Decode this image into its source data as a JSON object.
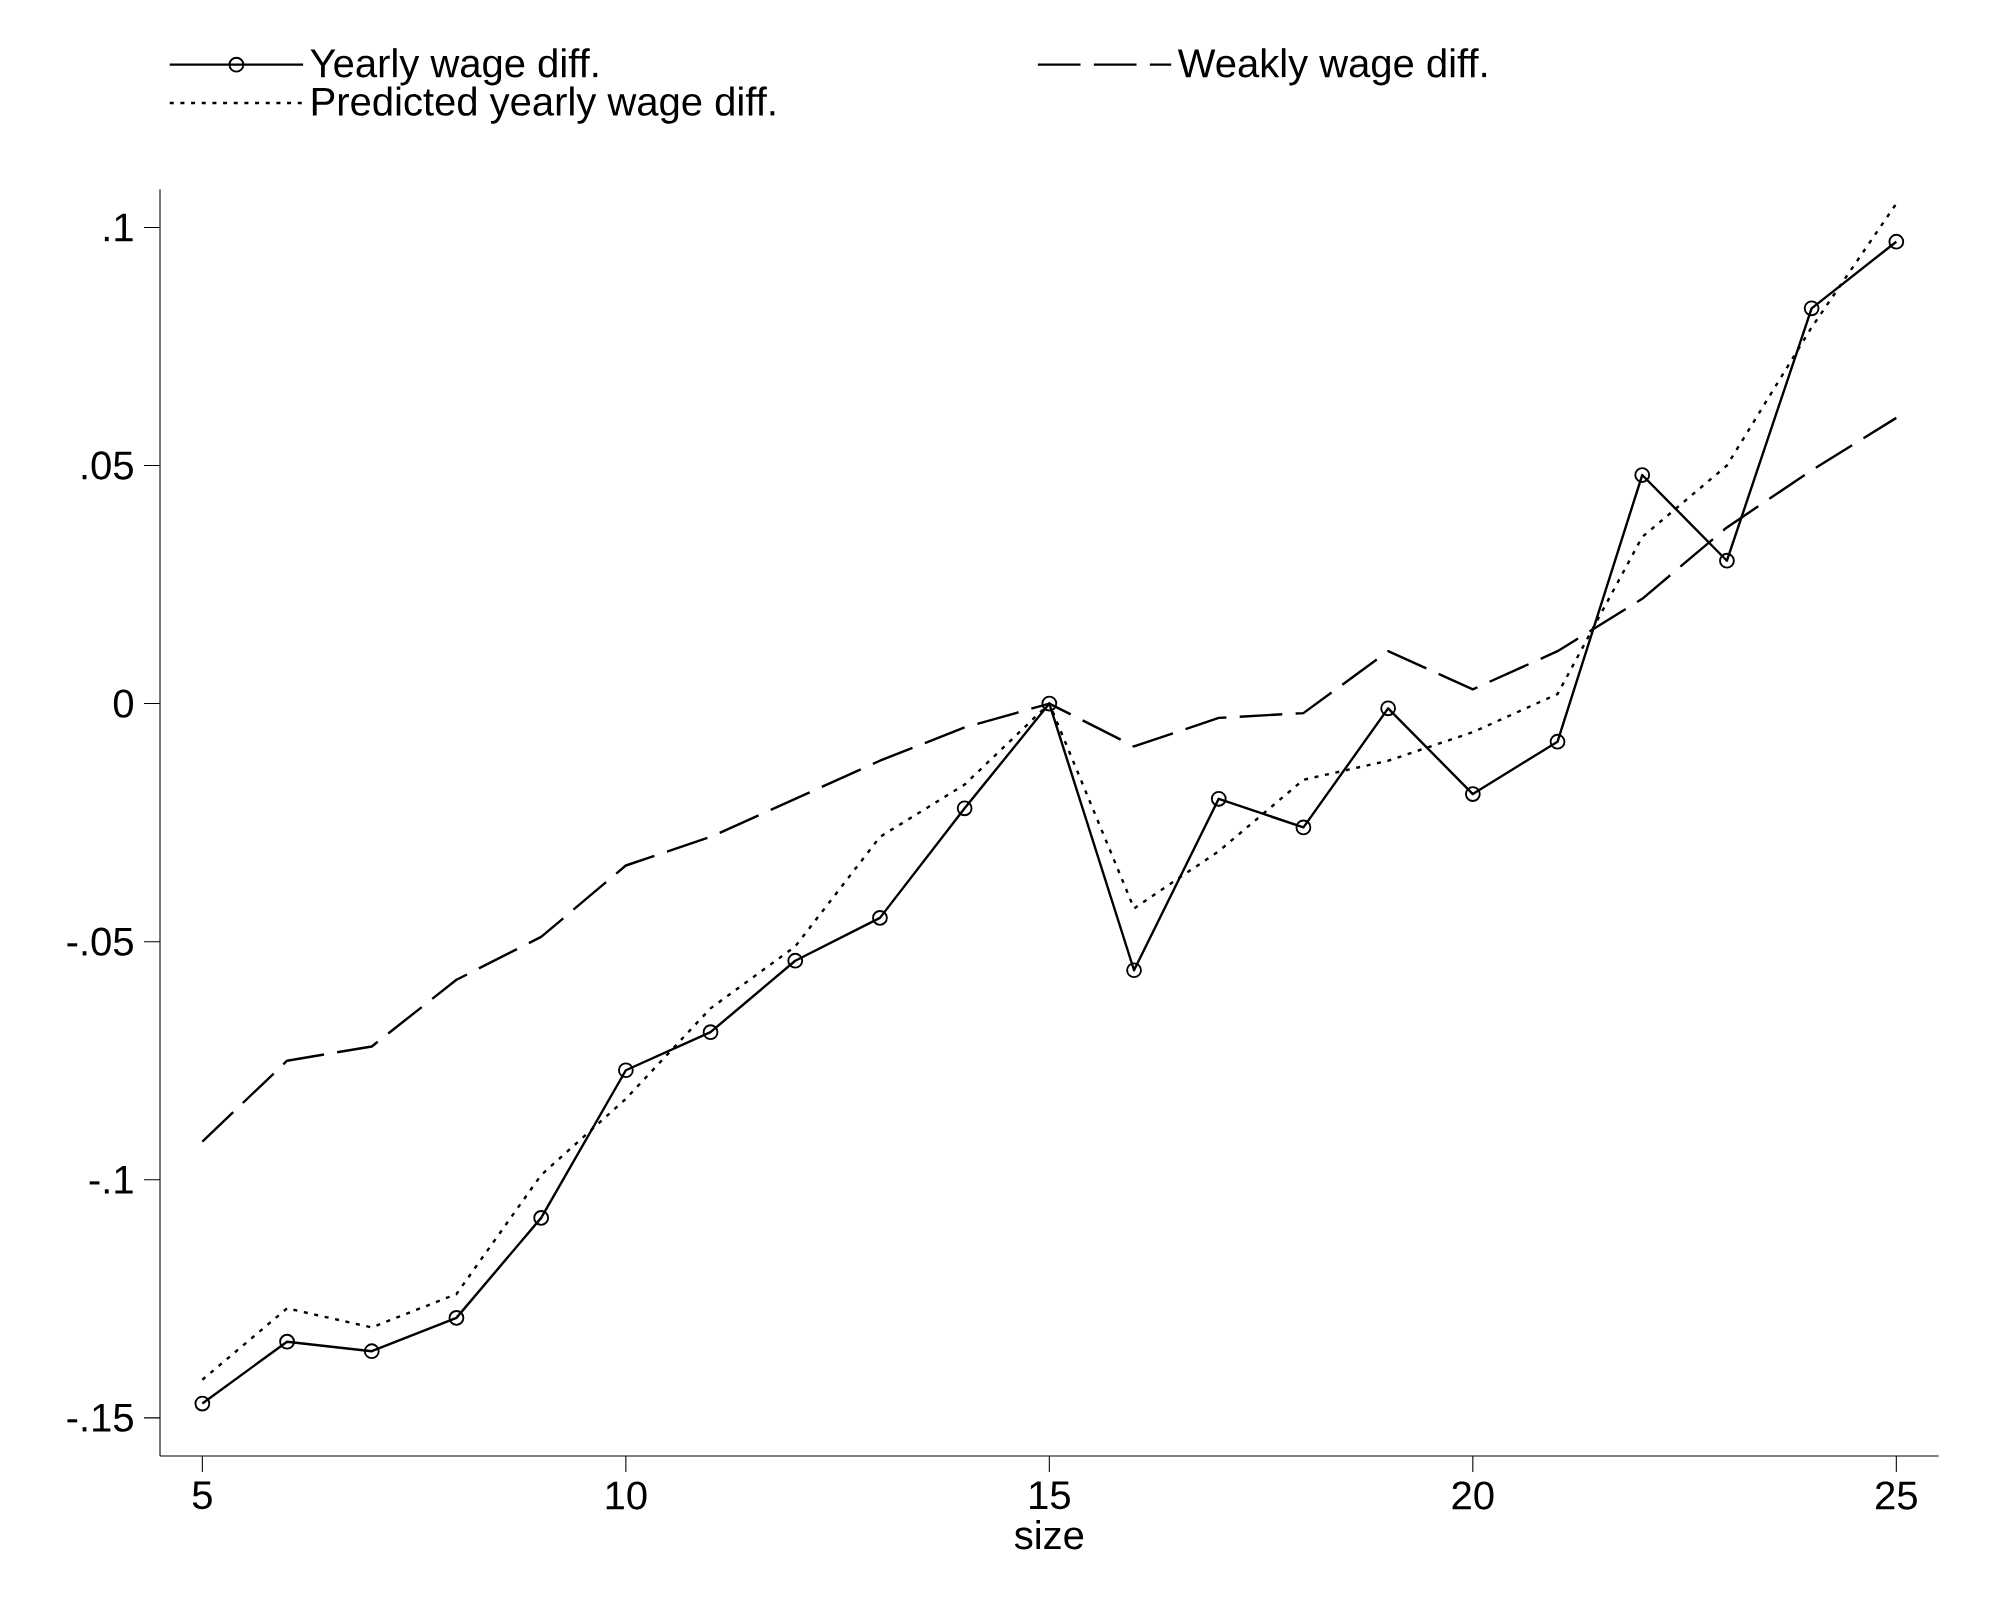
{
  "chart_data": {
    "type": "line",
    "xlabel": "size",
    "legend": "top",
    "grid": false,
    "x": [
      5,
      6,
      7,
      8,
      9,
      10,
      11,
      12,
      13,
      14,
      15,
      16,
      17,
      18,
      19,
      20,
      21,
      22,
      23,
      24,
      25
    ],
    "xlim": [
      4.5,
      25.5
    ],
    "xticks": [
      5,
      10,
      15,
      20,
      25
    ],
    "ylim": [
      -0.158,
      0.108
    ],
    "yticks": [
      {
        "value": -0.15,
        "label": "-.15"
      },
      {
        "value": -0.1,
        "label": "-.1"
      },
      {
        "value": -0.05,
        "label": "-.05"
      },
      {
        "value": 0,
        "label": "0"
      },
      {
        "value": 0.05,
        "label": ".05"
      },
      {
        "value": 0.1,
        "label": ".1"
      }
    ],
    "series": [
      {
        "name": "Yearly wage diff.",
        "color": "#000000",
        "marker": "circle",
        "line_style": "solid",
        "values": [
          -0.147,
          -0.134,
          -0.136,
          -0.129,
          -0.108,
          -0.077,
          -0.069,
          -0.054,
          -0.045,
          -0.022,
          0,
          -0.056,
          -0.02,
          -0.026,
          -0.001,
          -0.019,
          -0.008,
          0.048,
          0.03,
          0.083,
          0.097
        ]
      },
      {
        "name": "Weakly wage diff.",
        "color": "#000000",
        "marker": "none",
        "line_style": "dashed",
        "values": [
          -0.092,
          -0.075,
          -0.072,
          -0.058,
          -0.049,
          -0.034,
          -0.028,
          -0.02,
          -0.012,
          -0.005,
          0,
          -0.009,
          -0.003,
          -0.002,
          0.011,
          0.003,
          0.011,
          0.022,
          0.037,
          0.049,
          0.06
        ]
      },
      {
        "name": "Predicted yearly wage diff.",
        "color": "#000000",
        "marker": "none",
        "line_style": "dotted",
        "values": [
          -0.142,
          -0.127,
          -0.131,
          -0.124,
          -0.099,
          -0.083,
          -0.064,
          -0.051,
          -0.028,
          -0.017,
          0,
          -0.043,
          -0.031,
          -0.016,
          -0.012,
          -0.006,
          0.002,
          0.035,
          0.05,
          0.079,
          0.105
        ]
      }
    ]
  }
}
